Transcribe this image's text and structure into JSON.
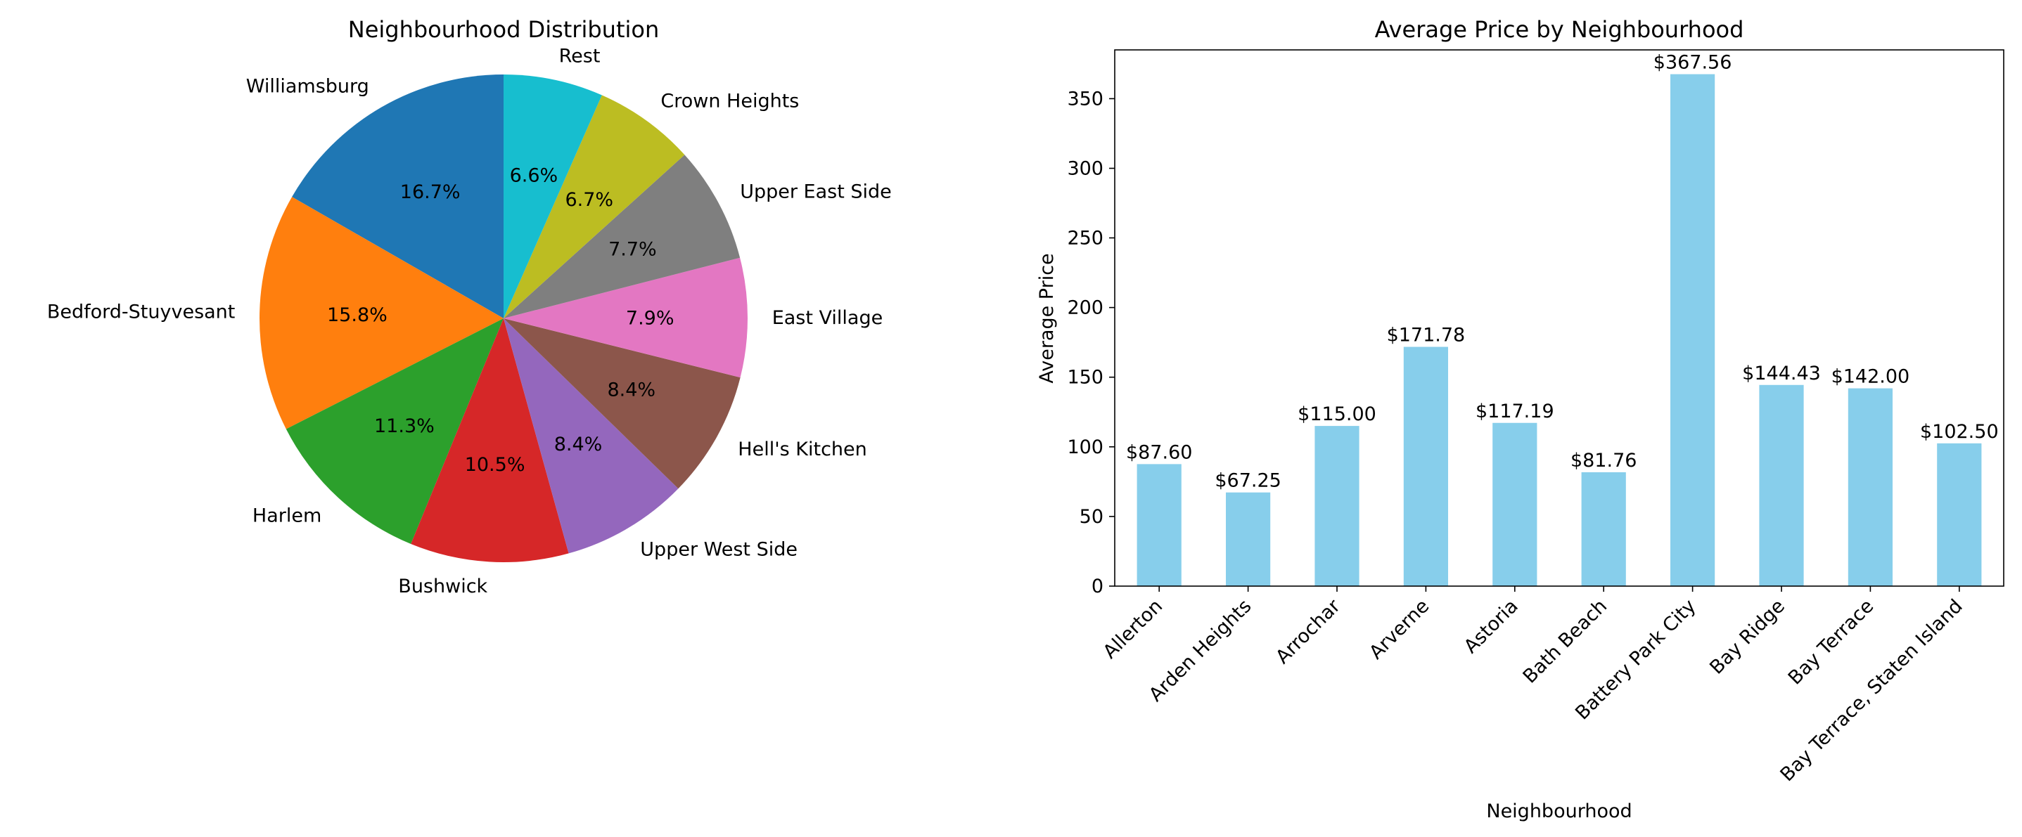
{
  "chart_data": [
    {
      "type": "pie",
      "title": "Neighbourhood Distribution",
      "start_angle": 90,
      "direction": "counterclockwise",
      "slices": [
        {
          "label": "Williamsburg",
          "percent": 16.7,
          "pct_label": "16.7%",
          "color": "#1f77b4"
        },
        {
          "label": "Bedford-Stuyvesant",
          "percent": 15.8,
          "pct_label": "15.8%",
          "color": "#ff7f0e"
        },
        {
          "label": "Harlem",
          "percent": 11.3,
          "pct_label": "11.3%",
          "color": "#2ca02c"
        },
        {
          "label": "Bushwick",
          "percent": 10.5,
          "pct_label": "10.5%",
          "color": "#d62728"
        },
        {
          "label": "Upper West Side",
          "percent": 8.4,
          "pct_label": "8.4%",
          "color": "#9467bd"
        },
        {
          "label": "Hell's Kitchen",
          "percent": 8.4,
          "pct_label": "8.4%",
          "color": "#8c564b"
        },
        {
          "label": "East Village",
          "percent": 7.9,
          "pct_label": "7.9%",
          "color": "#e377c2"
        },
        {
          "label": "Upper East Side",
          "percent": 7.7,
          "pct_label": "7.7%",
          "color": "#7f7f7f"
        },
        {
          "label": "Crown Heights",
          "percent": 6.7,
          "pct_label": "6.7%",
          "color": "#bcbd22"
        },
        {
          "label": "Rest",
          "percent": 6.6,
          "pct_label": "6.6%",
          "color": "#17becf"
        }
      ]
    },
    {
      "type": "bar",
      "title": "Average Price by Neighbourhood",
      "xlabel": "Neighbourhood",
      "ylabel": "Average Price",
      "ylim": [
        0,
        385
      ],
      "yticks": [
        0,
        50,
        100,
        150,
        200,
        250,
        300,
        350
      ],
      "bar_color": "#87ceeb",
      "categories": [
        "Allerton",
        "Arden Heights",
        "Arrochar",
        "Arverne",
        "Astoria",
        "Bath Beach",
        "Battery Park City",
        "Bay Ridge",
        "Bay Terrace",
        "Bay Terrace, Staten Island"
      ],
      "values": [
        87.6,
        67.25,
        115.0,
        171.78,
        117.19,
        81.76,
        367.56,
        144.43,
        142.0,
        102.5
      ],
      "value_labels": [
        "$87.60",
        "$67.25",
        "$115.00",
        "$171.78",
        "$117.19",
        "$81.76",
        "$367.56",
        "$144.43",
        "$142.00",
        "$102.50"
      ],
      "grid": false
    }
  ]
}
